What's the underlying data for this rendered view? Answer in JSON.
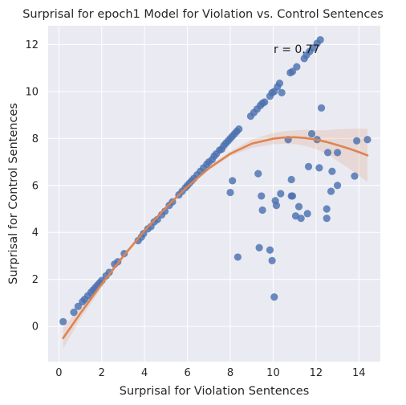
{
  "chart_data": {
    "type": "scatter",
    "title": "Surprisal for epoch1 Model for Violation vs. Control Sentences",
    "xlabel": "Surprisal for Violation Sentences",
    "ylabel": "Surprisal for Control Sentences",
    "xlim": [
      -0.5,
      15.0
    ],
    "ylim": [
      -1.5,
      12.8
    ],
    "xticks": [
      0,
      2,
      4,
      6,
      8,
      10,
      12,
      14
    ],
    "yticks": [
      0,
      2,
      4,
      6,
      8,
      10,
      12
    ],
    "grid": true,
    "annotation": "r = 0.77",
    "colors": {
      "background": "#eaeaf2",
      "grid": "#ffffff",
      "points": "#4c72b0",
      "fit_line": "#dd8452",
      "ci_band": "#dd8452"
    },
    "series": [
      {
        "kind": "points",
        "points": [
          [
            0.2,
            0.2
          ],
          [
            0.7,
            0.6
          ],
          [
            0.9,
            0.85
          ],
          [
            1.1,
            1.05
          ],
          [
            1.2,
            1.15
          ],
          [
            1.35,
            1.3
          ],
          [
            1.5,
            1.45
          ],
          [
            1.6,
            1.55
          ],
          [
            1.7,
            1.65
          ],
          [
            1.8,
            1.75
          ],
          [
            1.9,
            1.85
          ],
          [
            2.0,
            1.95
          ],
          [
            2.2,
            2.15
          ],
          [
            2.35,
            2.3
          ],
          [
            2.6,
            2.65
          ],
          [
            2.75,
            2.75
          ],
          [
            3.05,
            3.1
          ],
          [
            3.7,
            3.65
          ],
          [
            3.85,
            3.8
          ],
          [
            3.95,
            3.95
          ],
          [
            4.15,
            4.15
          ],
          [
            4.3,
            4.25
          ],
          [
            4.45,
            4.45
          ],
          [
            4.6,
            4.55
          ],
          [
            4.8,
            4.75
          ],
          [
            4.95,
            4.9
          ],
          [
            5.15,
            5.15
          ],
          [
            5.3,
            5.3
          ],
          [
            5.6,
            5.6
          ],
          [
            5.75,
            5.75
          ],
          [
            5.9,
            5.9
          ],
          [
            6.0,
            6.0
          ],
          [
            6.1,
            6.1
          ],
          [
            6.2,
            6.2
          ],
          [
            6.3,
            6.3
          ],
          [
            6.45,
            6.45
          ],
          [
            6.6,
            6.6
          ],
          [
            6.75,
            6.75
          ],
          [
            6.9,
            6.9
          ],
          [
            7.0,
            7.0
          ],
          [
            7.15,
            7.1
          ],
          [
            7.25,
            7.25
          ],
          [
            7.35,
            7.35
          ],
          [
            7.5,
            7.5
          ],
          [
            7.6,
            7.55
          ],
          [
            7.7,
            7.7
          ],
          [
            7.8,
            7.8
          ],
          [
            7.9,
            7.9
          ],
          [
            8.0,
            8.0
          ],
          [
            8.1,
            8.1
          ],
          [
            8.2,
            8.2
          ],
          [
            8.3,
            8.3
          ],
          [
            8.4,
            8.4
          ],
          [
            8.95,
            8.95
          ],
          [
            9.1,
            9.1
          ],
          [
            9.25,
            9.25
          ],
          [
            9.4,
            9.4
          ],
          [
            9.5,
            9.5
          ],
          [
            9.6,
            9.55
          ],
          [
            9.85,
            9.8
          ],
          [
            9.95,
            9.95
          ],
          [
            10.05,
            10.0
          ],
          [
            10.2,
            10.2
          ],
          [
            10.3,
            10.35
          ],
          [
            10.4,
            9.95
          ],
          [
            10.8,
            10.8
          ],
          [
            10.9,
            10.85
          ],
          [
            11.1,
            11.05
          ],
          [
            11.45,
            11.4
          ],
          [
            11.55,
            11.55
          ],
          [
            11.7,
            11.7
          ],
          [
            11.85,
            11.85
          ],
          [
            12.05,
            12.05
          ],
          [
            12.2,
            12.2
          ],
          [
            12.25,
            9.3
          ],
          [
            8.0,
            5.7
          ],
          [
            8.1,
            6.2
          ],
          [
            8.35,
            2.95
          ],
          [
            9.3,
            6.5
          ],
          [
            9.35,
            3.35
          ],
          [
            9.45,
            5.55
          ],
          [
            9.5,
            4.95
          ],
          [
            9.85,
            3.25
          ],
          [
            9.95,
            2.8
          ],
          [
            10.05,
            1.25
          ],
          [
            10.1,
            5.35
          ],
          [
            10.15,
            5.15
          ],
          [
            10.35,
            5.65
          ],
          [
            10.7,
            7.95
          ],
          [
            10.85,
            6.25
          ],
          [
            10.85,
            5.55
          ],
          [
            10.9,
            5.55
          ],
          [
            11.05,
            4.7
          ],
          [
            11.2,
            5.1
          ],
          [
            11.3,
            4.6
          ],
          [
            11.6,
            4.8
          ],
          [
            11.65,
            6.8
          ],
          [
            11.8,
            8.2
          ],
          [
            12.05,
            7.95
          ],
          [
            12.15,
            6.75
          ],
          [
            12.5,
            5.0
          ],
          [
            12.5,
            4.6
          ],
          [
            12.55,
            7.4
          ],
          [
            12.7,
            5.75
          ],
          [
            12.75,
            6.6
          ],
          [
            13.0,
            6.0
          ],
          [
            13.0,
            7.4
          ],
          [
            13.8,
            6.4
          ],
          [
            13.9,
            7.9
          ],
          [
            14.4,
            7.95
          ]
        ]
      },
      {
        "kind": "fit",
        "x": [
          0.2,
          1.0,
          2.0,
          3.0,
          4.0,
          5.0,
          6.0,
          7.0,
          8.0,
          9.0,
          10.0,
          10.5,
          11.0,
          11.5,
          12.0,
          12.5,
          13.0,
          13.5,
          14.0,
          14.4
        ],
        "y": [
          -0.5,
          0.55,
          1.8,
          2.98,
          4.07,
          5.06,
          5.95,
          6.73,
          7.35,
          7.78,
          7.99,
          8.04,
          8.05,
          8.02,
          7.95,
          7.85,
          7.72,
          7.58,
          7.42,
          7.28
        ],
        "ci_lower": [
          -0.95,
          0.3,
          1.65,
          2.88,
          3.98,
          4.98,
          5.88,
          6.65,
          7.25,
          7.6,
          7.75,
          7.77,
          7.76,
          7.68,
          7.55,
          7.35,
          7.05,
          6.75,
          6.42,
          6.15
        ],
        "ci_upper": [
          -0.05,
          0.8,
          1.95,
          3.08,
          4.16,
          5.14,
          6.02,
          6.81,
          7.45,
          7.96,
          8.23,
          8.31,
          8.34,
          8.36,
          8.35,
          8.35,
          8.39,
          8.41,
          8.42,
          8.41
        ]
      }
    ]
  }
}
